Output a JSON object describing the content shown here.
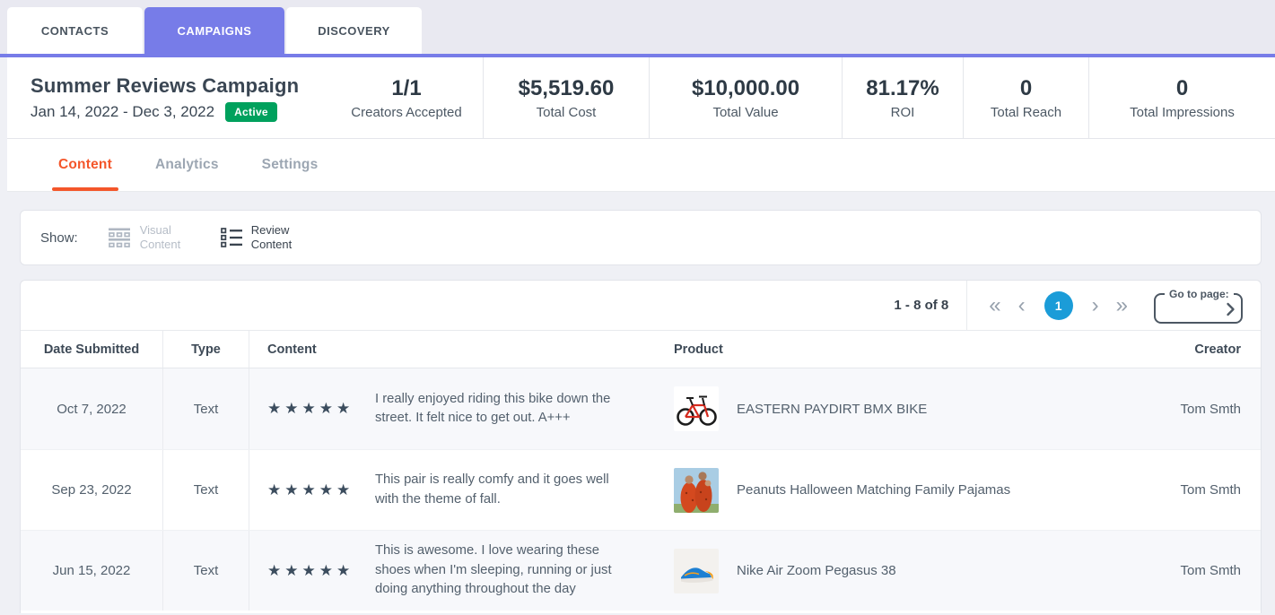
{
  "colors": {
    "accent_purple": "#777CE8",
    "subtab_active_orange": "#F4562A",
    "status_green": "#00A15D",
    "pagination_blue": "#1B9CD8"
  },
  "primary_tabs": [
    {
      "label": "CONTACTS",
      "active": false
    },
    {
      "label": "CAMPAIGNS",
      "active": true
    },
    {
      "label": "DISCOVERY",
      "active": false
    }
  ],
  "campaign": {
    "title": "Summer Reviews Campaign",
    "date_range": "Jan 14, 2022 - Dec 3, 2022",
    "status_badge": "Active",
    "stats": [
      {
        "value": "1/1",
        "label": "Creators Accepted"
      },
      {
        "value": "$5,519.60",
        "label": "Total Cost"
      },
      {
        "value": "$10,000.00",
        "label": "Total Value"
      },
      {
        "value": "81.17%",
        "label": "ROI"
      },
      {
        "value": "0",
        "label": "Total Reach"
      },
      {
        "value": "0",
        "label": "Total Impressions"
      }
    ]
  },
  "sub_tabs": [
    {
      "label": "Content",
      "active": true
    },
    {
      "label": "Analytics",
      "active": false
    },
    {
      "label": "Settings",
      "active": false
    }
  ],
  "show_filter": {
    "label": "Show:",
    "options": [
      {
        "label": "Visual Content",
        "icon": "grid-icon",
        "active": false
      },
      {
        "label": "Review Content",
        "icon": "list-icon",
        "active": true
      }
    ]
  },
  "pagination": {
    "range_text": "1 - 8 of 8",
    "current_page": "1",
    "first_icon": "«",
    "prev_icon": "‹",
    "next_icon": "›",
    "last_icon": "»",
    "go_to_label": "Go to page:",
    "go_to_value": ""
  },
  "table": {
    "columns": [
      "Date Submitted",
      "Type",
      "Content",
      "Product",
      "Creator"
    ],
    "rows": [
      {
        "date": "Oct 7, 2022",
        "type": "Text",
        "rating": 5,
        "review": "I really enjoyed riding this bike down the street. It felt nice to get out. A+++",
        "product": "EASTERN PAYDIRT BMX BIKE",
        "product_image": "bmx-bike",
        "creator": "Tom Smth"
      },
      {
        "date": "Sep 23, 2022",
        "type": "Text",
        "rating": 5,
        "review": "This pair is really comfy and it goes well with the theme of fall.",
        "product": "Peanuts Halloween Matching Family Pajamas",
        "product_image": "family-pajamas",
        "creator": "Tom Smth"
      },
      {
        "date": "Jun 15, 2022",
        "type": "Text",
        "rating": 5,
        "review": "This is awesome. I love wearing these shoes when I'm sleeping, running or just doing anything throughout the day",
        "product": "Nike Air Zoom Pegasus 38",
        "product_image": "running-shoe",
        "creator": "Tom Smth"
      }
    ]
  }
}
